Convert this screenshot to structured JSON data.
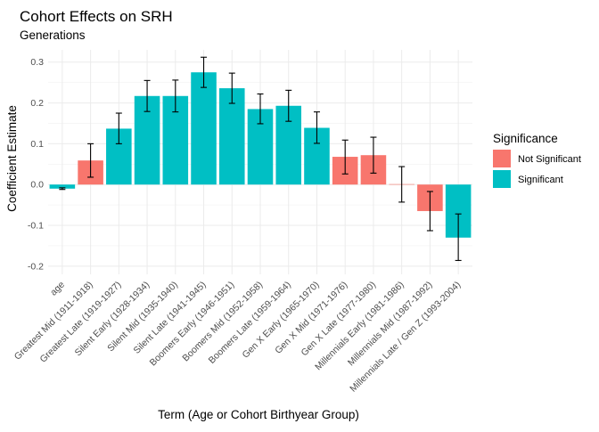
{
  "chart_data": {
    "type": "bar",
    "title": "Cohort Effects on SRH",
    "subtitle": "Generations",
    "xlabel": "Term (Age or Cohort Birthyear Group)",
    "ylabel": "Coefficient Estimate",
    "ylim": [
      -0.22,
      0.33
    ],
    "yticks": [
      "-0.2",
      "-0.1",
      "0.0",
      "0.1",
      "0.2",
      "0.3"
    ],
    "ytick_values": [
      -0.2,
      -0.1,
      0.0,
      0.1,
      0.2,
      0.3
    ],
    "grid": true,
    "legend": {
      "title": "Significance",
      "placement": "right",
      "entries": [
        {
          "label": "Not Significant",
          "color": "#F8766D"
        },
        {
          "label": "Significant",
          "color": "#00BFC4"
        }
      ]
    },
    "categories": [
      "age",
      "Greatest Mid (1911-1918)",
      "Greatest Late (1919-1927)",
      "Silent Early (1928-1934)",
      "Silent Mid (1935-1940)",
      "Silent Late (1941-1945)",
      "Boomers Early (1946-1951)",
      "Boomers Mid (1952-1958)",
      "Boomers Late (1959-1964)",
      "Gen X Early (1965-1970)",
      "Gen X Mid (1971-1976)",
      "Gen X Late (1977-1980)",
      "Millennials Early (1981-1986)",
      "Millennials Mid (1987-1992)",
      "Millennials Late / Gen Z (1993-2004)"
    ],
    "values": [
      -0.01,
      0.059,
      0.137,
      0.217,
      0.217,
      0.275,
      0.236,
      0.185,
      0.193,
      0.139,
      0.068,
      0.072,
      0.001,
      -0.065,
      -0.13
    ],
    "error_low": [
      -0.012,
      0.018,
      0.1,
      0.179,
      0.178,
      0.238,
      0.199,
      0.149,
      0.155,
      0.101,
      0.026,
      0.028,
      -0.043,
      -0.113,
      -0.186
    ],
    "error_high": [
      -0.008,
      0.1,
      0.175,
      0.255,
      0.256,
      0.312,
      0.273,
      0.222,
      0.231,
      0.178,
      0.109,
      0.116,
      0.044,
      -0.017,
      -0.072
    ],
    "significance": [
      "Significant",
      "Not Significant",
      "Significant",
      "Significant",
      "Significant",
      "Significant",
      "Significant",
      "Significant",
      "Significant",
      "Significant",
      "Not Significant",
      "Not Significant",
      "Not Significant",
      "Not Significant",
      "Significant"
    ]
  }
}
